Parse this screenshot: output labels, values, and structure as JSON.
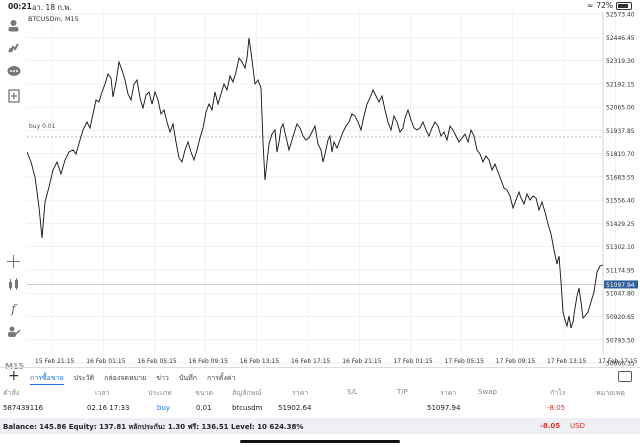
{
  "status_bar": {
    "time": "00:21",
    "date": "อา. 18 ก.พ.",
    "battery": "72%"
  },
  "chart": {
    "symbol_label": "BTCUSDm, M15",
    "buy_line_label": "buy 0.01",
    "current_price": "51097.94",
    "timeframe": "M15",
    "price_ticks": [
      "52573.40",
      "52446.45",
      "52319.30",
      "52192.15",
      "52065.00",
      "51937.85",
      "51810.70",
      "51683.55",
      "51556.40",
      "51429.25",
      "51302.10",
      "51174.95",
      "51047.80",
      "50920.65",
      "50793.50",
      "50666.35"
    ],
    "time_ticks": [
      "15 Feb 21:15",
      "16 Feb 01:15",
      "16 Feb 05:15",
      "16 Feb 09:15",
      "16 Feb 13:15",
      "16 Feb 17:15",
      "16 Feb 21:15",
      "17 Feb 01:15",
      "17 Feb 05:15",
      "17 Feb 09:15",
      "17 Feb 13:15",
      "17 Feb 17:15"
    ],
    "colors": {
      "line": "#111111",
      "grid": "#e4e4e4",
      "current_price_bg": "#2f5f99",
      "buy_line": "#999999"
    }
  },
  "toolbar_icons": [
    "account-icon",
    "trade-icon",
    "chat-icon",
    "add-document-icon",
    "crosshair-icon",
    "indicators-icon",
    "function-icon",
    "objects-icon"
  ],
  "bottom_tabs": [
    "การซื้อขาย",
    "ประวัติ",
    "กล่องจดหมาย",
    "ข่าว",
    "บันทึก",
    "การตั้งค่า"
  ],
  "positions_table": {
    "headers": [
      "คำสั่ง",
      "เวลา",
      "ประเภท",
      "ขนาด",
      "สัญลักษณ์",
      "ราคา",
      "S/L",
      "T/P",
      "ราคา",
      "Swap",
      "กำไร",
      "หมายเหตุ"
    ],
    "row": [
      "587439116",
      "02.16 17:33",
      "buy",
      "0.01",
      "btcusdm",
      "51902.64",
      "",
      "",
      "51097.94",
      "",
      "-8.05",
      ""
    ]
  },
  "summary": {
    "text": "Balance: 145.86 Equity: 137.81 หลักประกัน: 1.30 ฟรี: 136.51 Level: 10 624.38%",
    "profit": "-8.05",
    "currency": "USD"
  }
}
